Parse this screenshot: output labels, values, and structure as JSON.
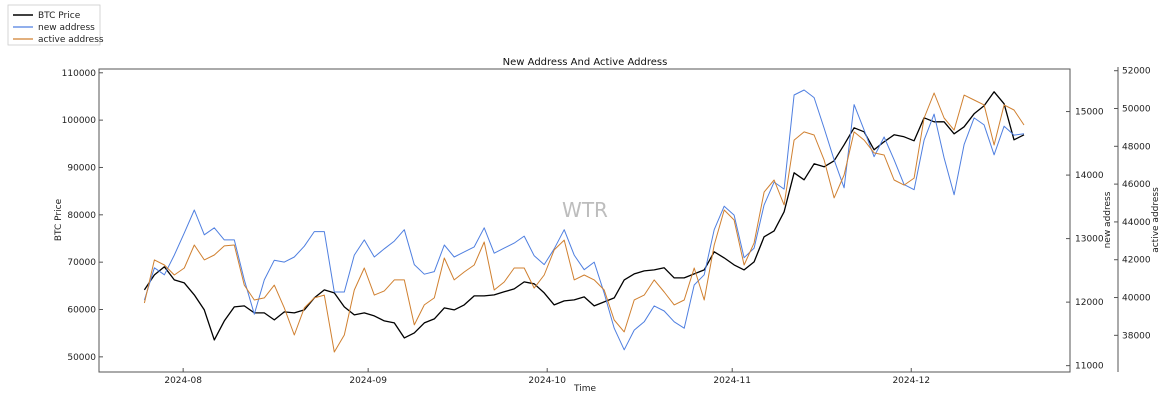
{
  "chart_data": {
    "type": "line",
    "title": "New Address And Active Address",
    "xlabel": "Time",
    "watermark": "WTR",
    "x_origin": "2024-08-01",
    "x_first_day": -6.5,
    "x_step_days": 1.675,
    "xlim_days": [
      -14.1,
      148.6
    ],
    "x_ticks": [
      {
        "day": 0,
        "label": "2024-08"
      },
      {
        "day": 31,
        "label": "2024-09"
      },
      {
        "day": 61,
        "label": "2024-10"
      },
      {
        "day": 92,
        "label": "2024-11"
      },
      {
        "day": 122,
        "label": "2024-12"
      }
    ],
    "legend": {
      "placement": "top-left outside"
    },
    "axes": {
      "btc": {
        "label": "BTC Price",
        "ylim": [
          46800,
          110800
        ],
        "ticks": [
          50000,
          60000,
          70000,
          80000,
          90000,
          100000,
          110000
        ]
      },
      "new": {
        "label": "new address",
        "ylim": [
          10900,
          15670
        ],
        "ticks": [
          11000,
          12000,
          13000,
          14000,
          15000
        ]
      },
      "active": {
        "label": "active address",
        "ylim": [
          36060,
          52090
        ],
        "ticks": [
          38000,
          40000,
          42000,
          44000,
          46000,
          48000,
          50000,
          52000
        ]
      }
    },
    "series": [
      {
        "name": "BTC Price",
        "axis": "btc",
        "color": "#000000",
        "values": [
          64150,
          67320,
          69010,
          66260,
          65630,
          63090,
          59920,
          53580,
          57600,
          60560,
          60770,
          59290,
          59290,
          57810,
          59500,
          59290,
          59920,
          62460,
          64150,
          63510,
          60560,
          58870,
          59290,
          58650,
          57600,
          57180,
          54010,
          55060,
          57180,
          58020,
          60340,
          59920,
          60980,
          62880,
          62880,
          63090,
          63730,
          64360,
          65840,
          65420,
          63510,
          60980,
          61820,
          62030,
          62670,
          60770,
          61610,
          62460,
          66260,
          67530,
          68160,
          68370,
          68800,
          66680,
          66680,
          67530,
          68370,
          72180,
          70910,
          69430,
          68370,
          70060,
          75350,
          76610,
          80630,
          88870,
          87390,
          90770,
          90140,
          91410,
          94790,
          98380,
          97530,
          93730,
          95420,
          96900,
          96480,
          95630,
          100490,
          99650,
          99650,
          97110,
          98590,
          101340,
          103030,
          105990,
          103450,
          95840,
          96900
        ]
      },
      {
        "name": "new address",
        "axis": "new",
        "color": "#4f7fe0",
        "values": [
          12030,
          12540,
          12430,
          12740,
          13090,
          13450,
          13060,
          13170,
          12980,
          12980,
          12350,
          11810,
          12350,
          12660,
          12630,
          12710,
          12880,
          13110,
          13110,
          12160,
          12160,
          12740,
          12980,
          12710,
          12840,
          12960,
          13140,
          12590,
          12440,
          12480,
          12900,
          12710,
          12790,
          12870,
          13170,
          12770,
          12850,
          12930,
          13040,
          12730,
          12590,
          12840,
          13140,
          12740,
          12510,
          12630,
          12140,
          11590,
          11250,
          11560,
          11690,
          11940,
          11860,
          11690,
          11590,
          12270,
          12430,
          13140,
          13510,
          13370,
          12700,
          12850,
          13530,
          13890,
          13780,
          15260,
          15340,
          15220,
          14740,
          14240,
          13800,
          15110,
          14710,
          14290,
          14600,
          14240,
          13850,
          13770,
          14550,
          14960,
          14270,
          13690,
          14480,
          14900,
          14790,
          14320,
          14770,
          14630,
          14650
        ]
      },
      {
        "name": "active address",
        "axis": "active",
        "color": "#d08030",
        "values": [
          39710,
          41990,
          41720,
          41190,
          41560,
          42780,
          41990,
          42250,
          42730,
          42780,
          40660,
          39870,
          39980,
          40660,
          39450,
          38020,
          39450,
          39980,
          40130,
          37120,
          38020,
          40400,
          41560,
          40130,
          40350,
          40930,
          40930,
          38550,
          39610,
          39980,
          42090,
          40930,
          41350,
          41720,
          42940,
          40400,
          40820,
          41560,
          41560,
          40500,
          41190,
          42520,
          43040,
          40930,
          41190,
          40930,
          40400,
          38810,
          38180,
          39870,
          40130,
          40930,
          40290,
          39610,
          39870,
          41560,
          39870,
          42780,
          44630,
          44100,
          41720,
          42890,
          45580,
          46220,
          44900,
          48330,
          48760,
          48600,
          47280,
          45270,
          46480,
          48760,
          48330,
          47650,
          47540,
          46220,
          45950,
          46320,
          49500,
          50820,
          49500,
          48860,
          50710,
          50450,
          50190,
          48070,
          50190,
          49920,
          49130
        ]
      }
    ]
  }
}
